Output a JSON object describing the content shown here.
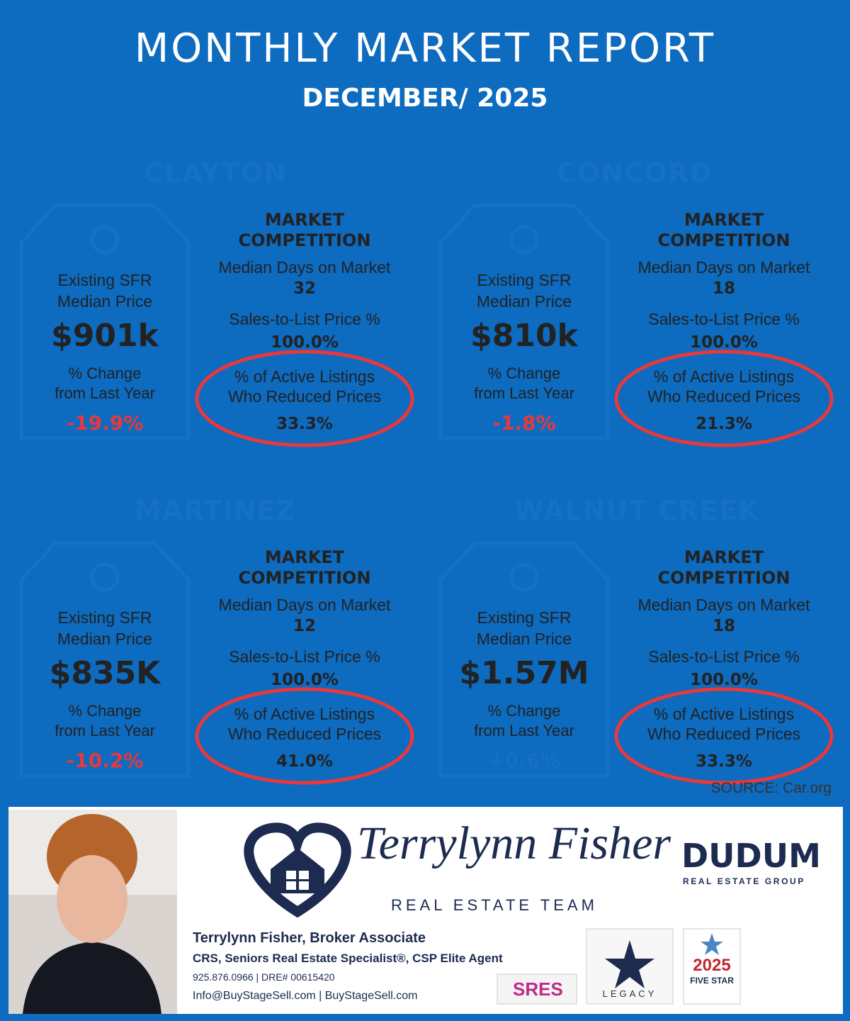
{
  "header": {
    "title": "MONTHLY MARKET REPORT",
    "subtitle": "DECEMBER/ 2025"
  },
  "markets": [
    {
      "city": "CLAYTON",
      "price_label": [
        "Existing SFR",
        "Median Price"
      ],
      "price": "$901k",
      "change_label": [
        "% Change",
        "from Last Year"
      ],
      "change": "-19.9%",
      "change_color": "#e8383b",
      "competition_title": [
        "MARKET",
        "COMPETITION"
      ],
      "days_label": "Median Days on Market",
      "days": "32",
      "ratio_label": "Sales-to-List Price %",
      "ratio": "100.0%",
      "reduced_label": [
        "% of Active Listings",
        "Who Reduced Prices"
      ],
      "reduced": "33.3%"
    },
    {
      "city": "CONCORD",
      "price_label": [
        "Existing SFR",
        "Median Price"
      ],
      "price": "$810k",
      "change_label": [
        "% Change",
        "from Last Year"
      ],
      "change": "-1.8%",
      "change_color": "#e8383b",
      "competition_title": [
        "MARKET",
        "COMPETITION"
      ],
      "days_label": "Median Days on Market",
      "days": "18",
      "ratio_label": "Sales-to-List Price %",
      "ratio": "100.0%",
      "reduced_label": [
        "% of Active Listings",
        "Who Reduced Prices"
      ],
      "reduced": "21.3%"
    },
    {
      "city": "MARTINEZ",
      "price_label": [
        "Existing SFR",
        "Median Price"
      ],
      "price": "$835K",
      "change_label": [
        "% Change",
        "from Last Year"
      ],
      "change": "-10.2%",
      "change_color": "#e8383b",
      "competition_title": [
        "MARKET",
        "COMPETITION"
      ],
      "days_label": "Median Days on Market",
      "days": "12",
      "ratio_label": "Sales-to-List Price %",
      "ratio": "100.0%",
      "reduced_label": [
        "% of Active Listings",
        "Who Reduced Prices"
      ],
      "reduced": "41.0%"
    },
    {
      "city": "WALNUT CREEK",
      "price_label": [
        "Existing SFR",
        "Median Price"
      ],
      "price": "$1.57M",
      "change_label": [
        "% Change",
        "from Last Year"
      ],
      "change": "+0.6%",
      "change_color": "#1670c4",
      "competition_title": [
        "MARKET",
        "COMPETITION"
      ],
      "days_label": "Median Days on Market",
      "days": "18",
      "ratio_label": "Sales-to-List Price %",
      "ratio": "100.0%",
      "reduced_label": [
        "% of Active Listings",
        "Who Reduced Prices"
      ],
      "reduced": "33.3%"
    }
  ],
  "source": "SOURCE: Car.org",
  "footer": {
    "team_name": "Terrylynn Fisher",
    "team_subtitle": "REAL ESTATE TEAM",
    "brokerage": "DUDUM",
    "brokerage_subtitle": "REAL ESTATE GROUP",
    "agent_lines": [
      "Terrylynn Fisher, Broker Associate",
      "CRS, Seniors Real Estate Specialist®, CSP Elite Agent",
      "925.876.0966 | DRE# 00615420",
      "Info@BuyStageSell.com | BuyStageSell.com"
    ],
    "badges": {
      "sres": "SRES",
      "legacy": "LEGACY",
      "year": "2025",
      "award": "FIVE STAR"
    }
  }
}
